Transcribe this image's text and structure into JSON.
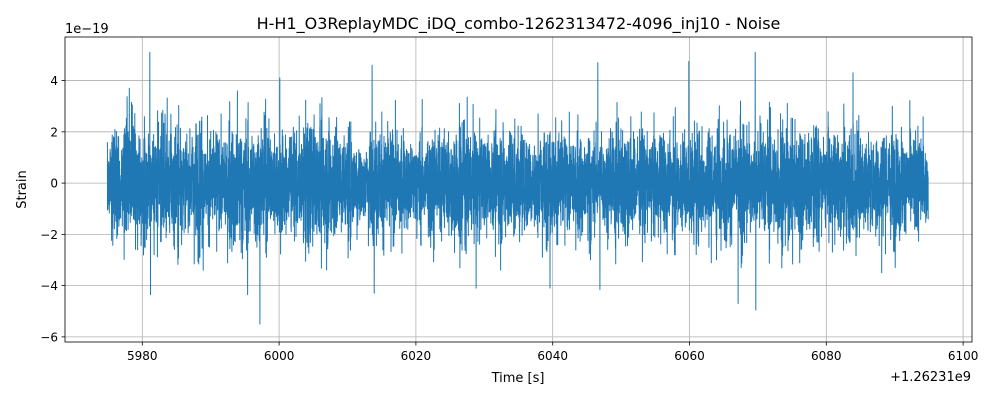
{
  "chart_data": {
    "type": "line",
    "title": "H-H1_O3ReplayMDC_iDQ_combo-1262313472-4096_inj10 - Noise",
    "xlabel": "Time [s]",
    "ylabel": "Strain",
    "x_offset_label": "+1.26231e9",
    "y_exponent_label": "1e−19",
    "xlim": [
      5968.7,
      6101.3
    ],
    "ylim": [
      -6.2,
      5.7
    ],
    "x_ticks": [
      5980,
      6000,
      6020,
      6040,
      6060,
      6080,
      6100
    ],
    "x_tick_labels": [
      "5980",
      "6000",
      "6020",
      "6040",
      "6060",
      "6080",
      "6100"
    ],
    "y_ticks": [
      -6,
      -4,
      -2,
      0,
      2,
      4
    ],
    "y_tick_labels": [
      "−6",
      "−4",
      "−2",
      "0",
      "2",
      "4"
    ],
    "grid": true,
    "series": [
      {
        "color": "#1f77b4",
        "x_range": [
          5974.9,
          6094.9
        ],
        "noise_rms": 1.0,
        "peaks": [
          {
            "x": 5978.1,
            "y": 3.7
          },
          {
            "x": 5981.1,
            "y": 5.1
          },
          {
            "x": 5981.2,
            "y": -4.35
          },
          {
            "x": 5988.9,
            "y": -3.4
          },
          {
            "x": 5993.9,
            "y": 3.6
          },
          {
            "x": 5995.4,
            "y": -4.35
          },
          {
            "x": 5997.2,
            "y": -5.5
          },
          {
            "x": 6000.1,
            "y": 4.1
          },
          {
            "x": 6013.6,
            "y": 4.6
          },
          {
            "x": 6013.9,
            "y": -4.3
          },
          {
            "x": 6028.8,
            "y": -4.1
          },
          {
            "x": 6039.6,
            "y": -4.1
          },
          {
            "x": 6046.6,
            "y": 4.7
          },
          {
            "x": 6046.9,
            "y": -4.15
          },
          {
            "x": 6059.9,
            "y": 4.75
          },
          {
            "x": 6067.1,
            "y": -4.7
          },
          {
            "x": 6069.6,
            "y": 5.1
          },
          {
            "x": 6069.7,
            "y": -4.95
          },
          {
            "x": 6083.9,
            "y": 4.3
          },
          {
            "x": 6088.1,
            "y": -3.5
          }
        ]
      }
    ]
  }
}
